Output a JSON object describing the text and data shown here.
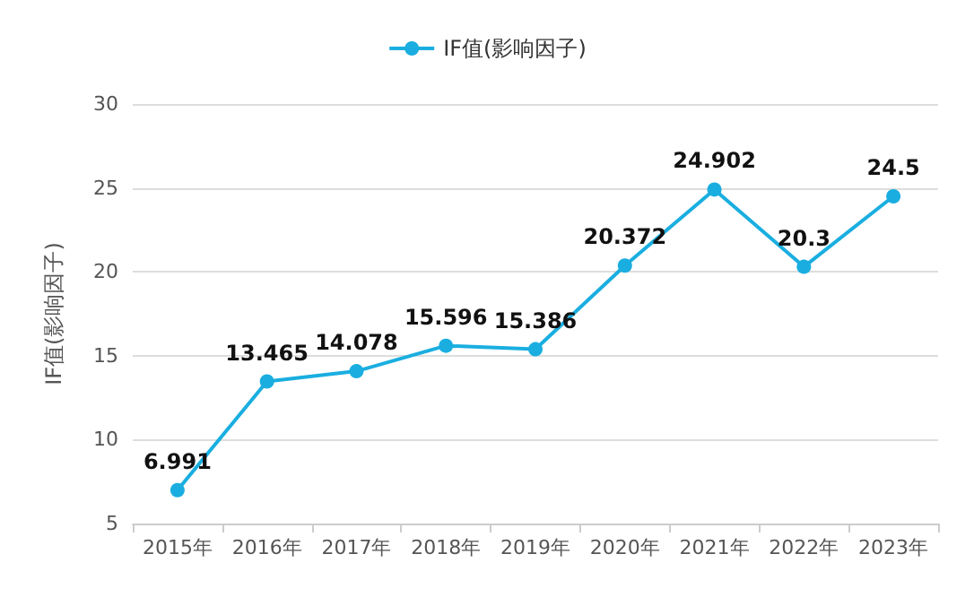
{
  "chart_data": {
    "type": "line",
    "ylabel": "IF值(影响因子)",
    "categories": [
      "2015年",
      "2016年",
      "2017年",
      "2018年",
      "2019年",
      "2020年",
      "2021年",
      "2022年",
      "2023年"
    ],
    "series": [
      {
        "name": "IF值(影响因子)",
        "color": "#1aaee0",
        "values": [
          6.991,
          13.465,
          14.078,
          15.596,
          15.386,
          20.372,
          24.902,
          20.3,
          24.5
        ]
      }
    ],
    "ylim": [
      5,
      30
    ],
    "yticks": [
      5,
      10,
      15,
      20,
      25,
      30
    ],
    "grid": "y",
    "legend": "top",
    "marker": "circle",
    "line_style": "solid",
    "data_labels": true
  }
}
